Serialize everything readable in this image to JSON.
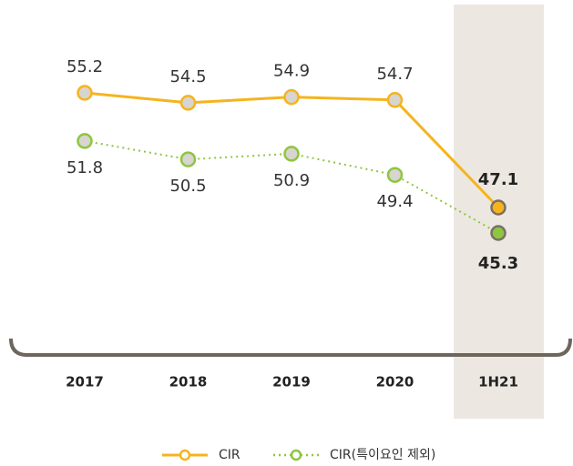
{
  "chart_data": {
    "type": "line",
    "categories": [
      "2017",
      "2018",
      "2019",
      "2020",
      "1H21"
    ],
    "series": [
      {
        "name": "CIR",
        "color": "#f5b41e",
        "values": [
          55.2,
          54.5,
          54.9,
          54.7,
          47.1
        ]
      },
      {
        "name": "CIR(특이요인 제외)",
        "color": "#8dc63f",
        "values": [
          51.8,
          50.5,
          50.9,
          49.4,
          45.3
        ]
      }
    ]
  }
}
